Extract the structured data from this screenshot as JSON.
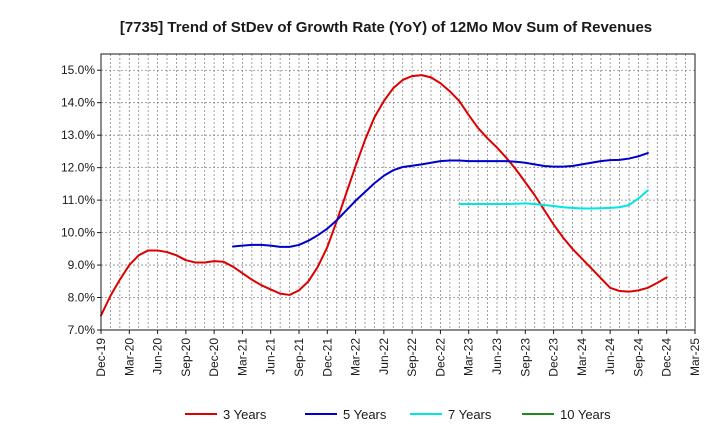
{
  "chart_data": {
    "type": "line",
    "title": "[7735]  Trend of StDev of Growth Rate (YoY) of 12Mo Mov Sum of Revenues",
    "xlabel": "",
    "ylabel": "",
    "ylim": [
      7.0,
      15.5
    ],
    "y_ticks": [
      7.0,
      8.0,
      9.0,
      10.0,
      11.0,
      12.0,
      13.0,
      14.0,
      15.0
    ],
    "y_tick_labels": [
      "7.0%",
      "8.0%",
      "9.0%",
      "10.0%",
      "11.0%",
      "12.0%",
      "13.0%",
      "14.0%",
      "15.0%"
    ],
    "x_tick_labels": [
      "Dec-19",
      "Mar-20",
      "Jun-20",
      "Sep-20",
      "Dec-20",
      "Mar-21",
      "Jun-21",
      "Sep-21",
      "Dec-21",
      "Mar-22",
      "Jun-22",
      "Sep-22",
      "Dec-22",
      "Mar-23",
      "Jun-23",
      "Sep-23",
      "Dec-23",
      "Mar-24",
      "Jun-24",
      "Sep-24",
      "Dec-24",
      "Mar-25"
    ],
    "x_tick_months": [
      0,
      3,
      6,
      9,
      12,
      15,
      18,
      21,
      24,
      27,
      30,
      33,
      36,
      39,
      42,
      45,
      48,
      51,
      54,
      57,
      60,
      63
    ],
    "x_range": [
      0,
      63
    ],
    "grid": true,
    "legend_position": "bottom",
    "series": [
      {
        "name": "3 Years",
        "color": "#dd0000",
        "start_month": 0,
        "values": [
          7.45,
          8.05,
          8.55,
          9.0,
          9.3,
          9.45,
          9.45,
          9.4,
          9.3,
          9.15,
          9.08,
          9.08,
          9.12,
          9.1,
          8.95,
          8.75,
          8.55,
          8.38,
          8.25,
          8.12,
          8.08,
          8.22,
          8.5,
          8.95,
          9.55,
          10.35,
          11.2,
          12.05,
          12.85,
          13.55,
          14.05,
          14.45,
          14.7,
          14.82,
          14.85,
          14.78,
          14.6,
          14.35,
          14.05,
          13.62,
          13.22,
          12.9,
          12.62,
          12.3,
          11.95,
          11.55,
          11.15,
          10.7,
          10.25,
          9.85,
          9.5,
          9.2,
          8.9,
          8.6,
          8.3,
          8.2,
          8.18,
          8.22,
          8.3,
          8.45,
          8.62
        ]
      },
      {
        "name": "5 Years",
        "color": "#0000cc",
        "start_month": 14,
        "values": [
          9.57,
          9.6,
          9.62,
          9.62,
          9.6,
          9.56,
          9.56,
          9.62,
          9.75,
          9.92,
          10.12,
          10.38,
          10.68,
          10.98,
          11.25,
          11.52,
          11.75,
          11.92,
          12.02,
          12.06,
          12.1,
          12.15,
          12.2,
          12.22,
          12.22,
          12.2,
          12.2,
          12.2,
          12.2,
          12.2,
          12.18,
          12.15,
          12.1,
          12.05,
          12.03,
          12.03,
          12.05,
          12.1,
          12.15,
          12.2,
          12.23,
          12.24,
          12.28,
          12.35,
          12.45
        ]
      },
      {
        "name": "7 Years",
        "color": "#00e5e5",
        "start_month": 38,
        "values": [
          10.88,
          10.88,
          10.88,
          10.88,
          10.88,
          10.88,
          10.89,
          10.9,
          10.88,
          10.85,
          10.82,
          10.78,
          10.76,
          10.74,
          10.74,
          10.75,
          10.76,
          10.78,
          10.85,
          11.05,
          11.3
        ]
      },
      {
        "name": "10 Years",
        "color": "#228822",
        "start_month": 0,
        "values": []
      }
    ]
  }
}
